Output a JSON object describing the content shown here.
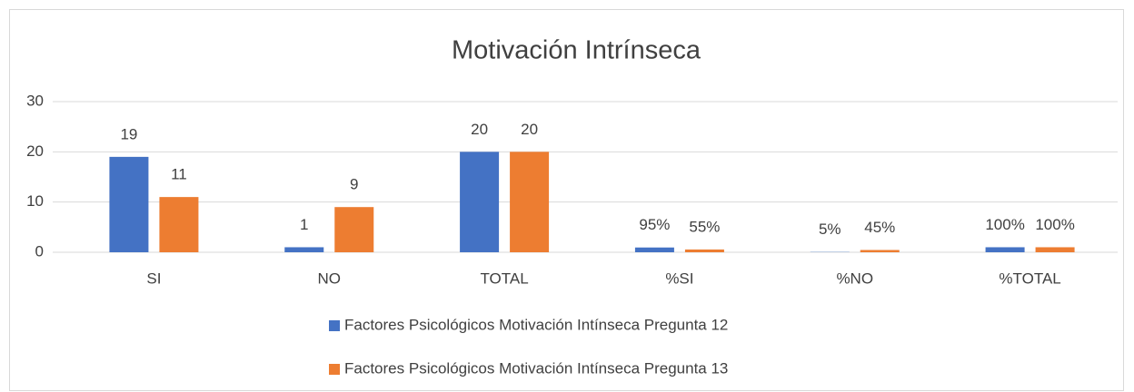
{
  "chart_data": {
    "type": "bar",
    "title": "Motivación Intrínseca",
    "categories": [
      "SI",
      "NO",
      "TOTAL",
      "%SI",
      "%NO",
      "%TOTAL"
    ],
    "series": [
      {
        "name": "Factores Psicológicos Motivación Intínseca Pregunta 12",
        "color": "#4472c4",
        "values": [
          19,
          1,
          20,
          0.95,
          0.05,
          1
        ],
        "value_labels": [
          "19",
          "1",
          "20",
          "95%",
          "5%",
          "100%"
        ]
      },
      {
        "name": "Factores Psicológicos Motivación Intínseca Pregunta 13",
        "color": "#ed7d31",
        "values": [
          11,
          9,
          20,
          0.55,
          0.45,
          1
        ],
        "value_labels": [
          "11",
          "9",
          "20",
          "55%",
          "45%",
          "100%"
        ]
      }
    ],
    "ylim": [
      0,
      30
    ],
    "yticks": [
      0,
      10,
      20,
      30
    ],
    "grid": true,
    "legend": "bottom"
  }
}
